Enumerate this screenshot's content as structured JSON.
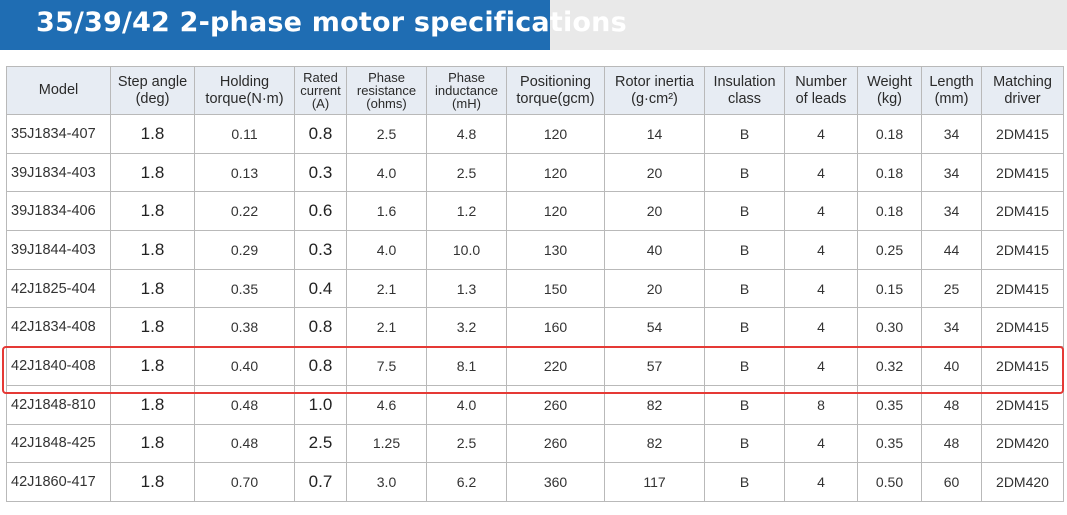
{
  "title": "35/39/42 2-phase motor specifications",
  "colors": {
    "title_bg": "#1f6db3",
    "header_bg": "#e7ecf3",
    "highlight": "#e53935"
  },
  "headers": {
    "model": [
      "Model"
    ],
    "step_angle": [
      "Step angle",
      "(deg)"
    ],
    "holding_torque": [
      "Holding",
      "torque(N·m)"
    ],
    "rated_current": [
      "Rated",
      "current",
      "(A)"
    ],
    "phase_resistance": [
      "Phase",
      "resistance",
      "(ohms)"
    ],
    "phase_inductance": [
      "Phase",
      "inductance",
      "(mH)"
    ],
    "positioning_torque": [
      "Positioning",
      "torque(gcm)"
    ],
    "rotor_inertia": [
      "Rotor inertia",
      "(g·cm²)"
    ],
    "insulation": [
      "Insulation",
      "class"
    ],
    "leads": [
      "Number",
      "of leads"
    ],
    "weight": [
      "Weight",
      "(kg)"
    ],
    "length": [
      "Length",
      "(mm)"
    ],
    "driver": [
      "Matching",
      "driver"
    ]
  },
  "rows": [
    [
      "35J1834-407",
      "1.8",
      "0.11",
      "0.8",
      "2.5",
      "4.8",
      "120",
      "14",
      "B",
      "4",
      "0.18",
      "34",
      "2DM415"
    ],
    [
      "39J1834-403",
      "1.8",
      "0.13",
      "0.3",
      "4.0",
      "2.5",
      "120",
      "20",
      "B",
      "4",
      "0.18",
      "34",
      "2DM415"
    ],
    [
      "39J1834-406",
      "1.8",
      "0.22",
      "0.6",
      "1.6",
      "1.2",
      "120",
      "20",
      "B",
      "4",
      "0.18",
      "34",
      "2DM415"
    ],
    [
      "39J1844-403",
      "1.8",
      "0.29",
      "0.3",
      "4.0",
      "10.0",
      "130",
      "40",
      "B",
      "4",
      "0.25",
      "44",
      "2DM415"
    ],
    [
      "42J1825-404",
      "1.8",
      "0.35",
      "0.4",
      "2.1",
      "1.3",
      "150",
      "20",
      "B",
      "4",
      "0.15",
      "25",
      "2DM415"
    ],
    [
      "42J1834-408",
      "1.8",
      "0.38",
      "0.8",
      "2.1",
      "3.2",
      "160",
      "54",
      "B",
      "4",
      "0.30",
      "34",
      "2DM415"
    ],
    [
      "42J1840-408",
      "1.8",
      "0.40",
      "0.8",
      "7.5",
      "8.1",
      "220",
      "57",
      "B",
      "4",
      "0.32",
      "40",
      "2DM415"
    ],
    [
      "42J1848-810",
      "1.8",
      "0.48",
      "1.0",
      "4.6",
      "4.0",
      "260",
      "82",
      "B",
      "8",
      "0.35",
      "48",
      "2DM415"
    ],
    [
      "42J1848-425",
      "1.8",
      "0.48",
      "2.5",
      "1.25",
      "2.5",
      "260",
      "82",
      "B",
      "4",
      "0.35",
      "48",
      "2DM420"
    ],
    [
      "42J1860-417",
      "1.8",
      "0.70",
      "0.7",
      "3.0",
      "6.2",
      "360",
      "117",
      "B",
      "4",
      "0.50",
      "60",
      "2DM420"
    ]
  ],
  "highlighted_model": "42J1840-408"
}
